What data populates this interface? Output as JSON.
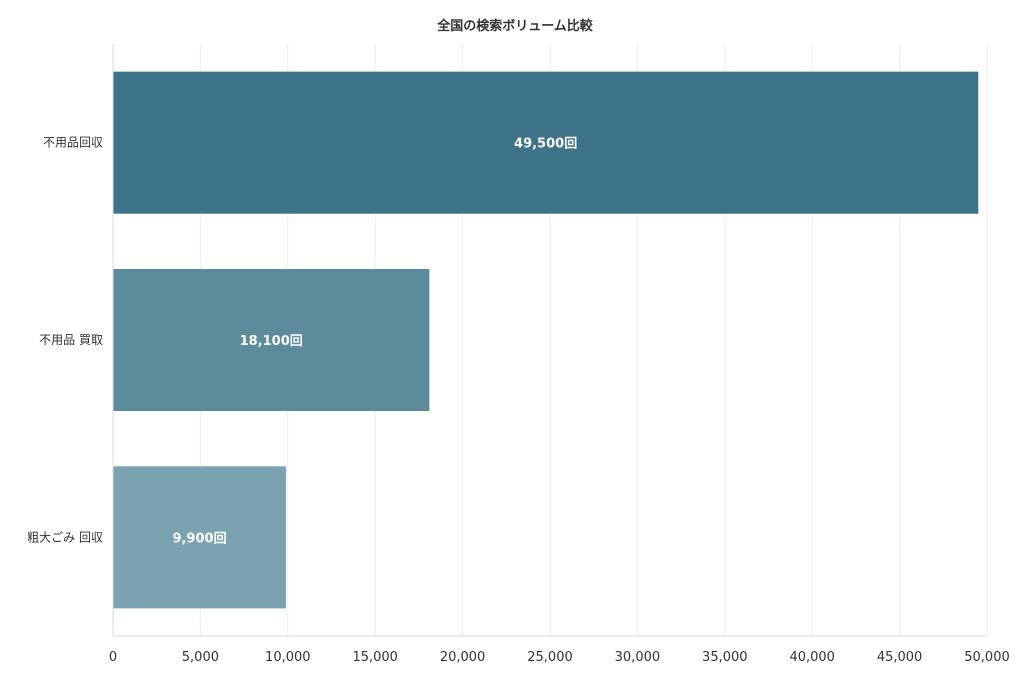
{
  "chart_data": {
    "type": "bar",
    "orientation": "horizontal",
    "title": "全国の検索ボリューム比較",
    "categories": [
      "不用品回収",
      "不用品 買取",
      "粗大ごみ 回収"
    ],
    "values": [
      49500,
      18100,
      9900
    ],
    "data_labels": [
      "49,500回",
      "18,100回",
      "9,900回"
    ],
    "bar_colors": [
      "#3d7389",
      "#5c8b9b",
      "#7aa2b1"
    ],
    "xlim": [
      0,
      50000
    ],
    "x_ticks": [
      0,
      5000,
      10000,
      15000,
      20000,
      25000,
      30000,
      35000,
      40000,
      45000,
      50000
    ],
    "x_tick_labels": [
      "0",
      "5,000",
      "10,000",
      "15,000",
      "20,000",
      "25,000",
      "30,000",
      "35,000",
      "40,000",
      "45,000",
      "50,000"
    ],
    "xlabel": "",
    "ylabel": "",
    "grid": true,
    "legend": "none"
  }
}
